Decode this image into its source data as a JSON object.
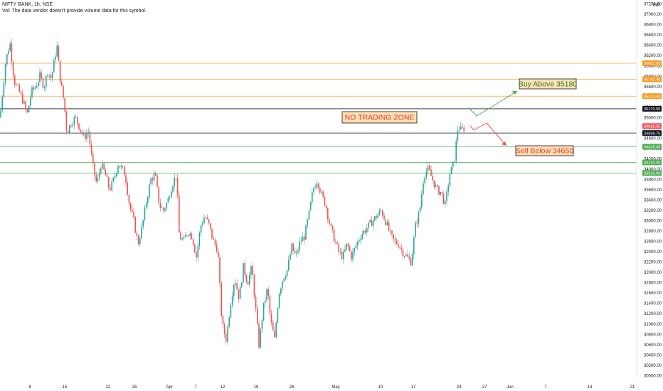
{
  "header": {
    "symbol_line": "NIFTY BANK, 1h, NSE",
    "volume_note": "Vol: The data vendor doesn't provide volume data for this symbol."
  },
  "axis": {
    "currency": "INR",
    "y_ticks": [
      30000,
      30200,
      30400,
      30600,
      30800,
      31000,
      31200,
      31400,
      31600,
      31800,
      32000,
      32200,
      32400,
      32600,
      32800,
      33000,
      33200,
      33400,
      33600,
      33800,
      34000,
      34200,
      34400,
      34600,
      34800,
      35000,
      35200,
      35400,
      35600,
      35800,
      36000,
      36200,
      36400,
      36600,
      36800,
      37000,
      37200
    ],
    "x_ticks": [
      "8",
      "15",
      "22",
      "25",
      "Apr",
      "7",
      "12",
      "19",
      "26",
      "May",
      "10",
      "17",
      "24",
      "27",
      "Jun",
      "7",
      "14",
      "21"
    ]
  },
  "colors": {
    "up": "#26a69a",
    "down": "#ef5350",
    "orange": "#f7a440",
    "orange_label": "#f59a23",
    "black": "#131722",
    "green_line": "#4caf50",
    "red_label": "#f05a5a"
  },
  "chart_data": {
    "type": "candlestick",
    "y_range": [
      29950,
      37250
    ],
    "levels": [
      {
        "price": 36051.85,
        "label": "36051.85",
        "color": "orange"
      },
      {
        "price": 35741.4,
        "label": "35741.40",
        "color": "orange"
      },
      {
        "price": 35414.4,
        "label": "35414.40",
        "color": "orange"
      },
      {
        "price": 35170.95,
        "label": "35170.95",
        "color": "black"
      },
      {
        "price": 34835.35,
        "label": "34835.35",
        "color": "red"
      },
      {
        "price": 34699.75,
        "label": "34699.75",
        "color": "black"
      },
      {
        "price": 34435.45,
        "label": "34435.45",
        "color": "green"
      },
      {
        "price": 34132.0,
        "label": "34132.00",
        "color": "green"
      },
      {
        "price": 33925.0,
        "label": "33925.00",
        "color": "green"
      }
    ],
    "annotations": {
      "no_trade": "NO TRADING ZONE",
      "buy": "Buy Above 35180",
      "sell": "Sell Below 34650"
    },
    "price_path": [
      [
        0,
        35000
      ],
      [
        8,
        36100
      ],
      [
        14,
        36450
      ],
      [
        20,
        35700
      ],
      [
        27,
        35500
      ],
      [
        33,
        35300
      ],
      [
        38,
        35050
      ],
      [
        44,
        35500
      ],
      [
        50,
        35600
      ],
      [
        56,
        35800
      ],
      [
        62,
        35600
      ],
      [
        67,
        35900
      ],
      [
        72,
        35750
      ],
      [
        80,
        36400
      ],
      [
        84,
        35800
      ],
      [
        90,
        35300
      ],
      [
        94,
        34700
      ],
      [
        100,
        34900
      ],
      [
        106,
        35000
      ],
      [
        112,
        34800
      ],
      [
        118,
        34600
      ],
      [
        124,
        34750
      ],
      [
        130,
        34100
      ],
      [
        136,
        33700
      ],
      [
        142,
        34100
      ],
      [
        148,
        33900
      ],
      [
        154,
        33600
      ],
      [
        160,
        33800
      ],
      [
        166,
        34100
      ],
      [
        172,
        34000
      ],
      [
        176,
        33900
      ],
      [
        182,
        33300
      ],
      [
        188,
        33000
      ],
      [
        194,
        32550
      ],
      [
        200,
        32900
      ],
      [
        206,
        33400
      ],
      [
        212,
        33800
      ],
      [
        218,
        33900
      ],
      [
        224,
        33300
      ],
      [
        230,
        33200
      ],
      [
        236,
        33400
      ],
      [
        242,
        33700
      ],
      [
        248,
        33900
      ],
      [
        252,
        32700
      ],
      [
        258,
        32600
      ],
      [
        264,
        32800
      ],
      [
        270,
        32700
      ],
      [
        276,
        32300
      ],
      [
        282,
        32900
      ],
      [
        288,
        33100
      ],
      [
        294,
        32900
      ],
      [
        300,
        32600
      ],
      [
        306,
        32450
      ],
      [
        312,
        31000
      ],
      [
        318,
        30700
      ],
      [
        324,
        31400
      ],
      [
        330,
        31900
      ],
      [
        336,
        31500
      ],
      [
        342,
        32100
      ],
      [
        348,
        31800
      ],
      [
        354,
        32100
      ],
      [
        360,
        31200
      ],
      [
        364,
        30600
      ],
      [
        370,
        31300
      ],
      [
        376,
        31700
      ],
      [
        380,
        31100
      ],
      [
        386,
        30700
      ],
      [
        392,
        31600
      ],
      [
        398,
        31900
      ],
      [
        404,
        32050
      ],
      [
        410,
        32500
      ],
      [
        416,
        32300
      ],
      [
        422,
        32600
      ],
      [
        428,
        32700
      ],
      [
        434,
        33100
      ],
      [
        440,
        33600
      ],
      [
        446,
        33800
      ],
      [
        452,
        33500
      ],
      [
        458,
        33300
      ],
      [
        464,
        32900
      ],
      [
        470,
        32650
      ],
      [
        476,
        32400
      ],
      [
        482,
        32300
      ],
      [
        488,
        32550
      ],
      [
        494,
        32300
      ],
      [
        500,
        32500
      ],
      [
        506,
        32700
      ],
      [
        512,
        32800
      ],
      [
        518,
        32900
      ],
      [
        524,
        33000
      ],
      [
        530,
        33100
      ],
      [
        536,
        33200
      ],
      [
        542,
        33000
      ],
      [
        548,
        32750
      ],
      [
        554,
        32600
      ],
      [
        560,
        32550
      ],
      [
        566,
        32400
      ],
      [
        572,
        32300
      ],
      [
        578,
        32200
      ],
      [
        584,
        32900
      ],
      [
        590,
        33200
      ],
      [
        596,
        33900
      ],
      [
        602,
        34000
      ],
      [
        608,
        33800
      ],
      [
        614,
        33600
      ],
      [
        620,
        33550
      ],
      [
        626,
        33300
      ],
      [
        632,
        33900
      ],
      [
        638,
        34100
      ],
      [
        644,
        34850
      ],
      [
        648,
        34750
      ],
      [
        654,
        34800
      ]
    ]
  }
}
